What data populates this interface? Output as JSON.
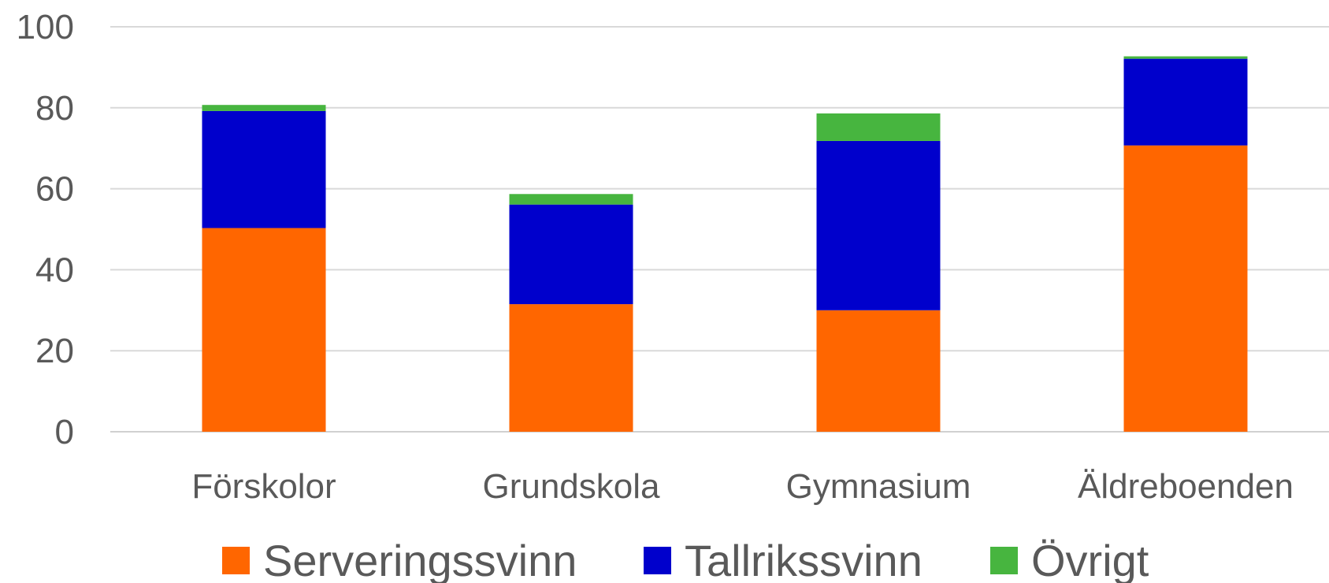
{
  "chart_data": {
    "type": "bar",
    "stacked": true,
    "title": "",
    "xlabel": "",
    "ylabel": "",
    "ylim": [
      0,
      100
    ],
    "yticks": [
      0,
      20,
      40,
      60,
      80,
      100
    ],
    "grid": true,
    "legend_position": "bottom",
    "categories": [
      "Förskolor",
      "Grundskola",
      "Gymnasium",
      "Äldreboenden"
    ],
    "series": [
      {
        "name": "Serveringssvinn",
        "color": "#FF6600",
        "values": [
          50.3,
          31.5,
          30.0,
          70.7
        ]
      },
      {
        "name": "Tallrikssvinn",
        "color": "#0000CC",
        "values": [
          28.9,
          24.6,
          41.8,
          21.4
        ]
      },
      {
        "name": "Övrigt",
        "color": "#47B53F",
        "values": [
          1.5,
          2.6,
          6.8,
          0.6
        ]
      }
    ]
  }
}
